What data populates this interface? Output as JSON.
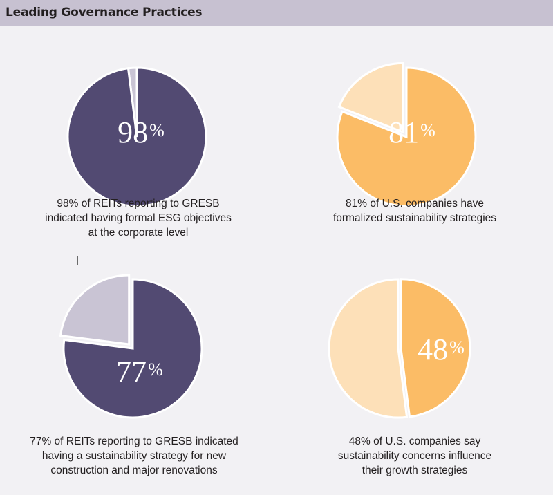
{
  "header": {
    "title": "Leading Governance Practices"
  },
  "colors": {
    "header_bg": "#c7c1d1",
    "purple": "#524a72",
    "purple_light": "#c9c4d4",
    "orange": "#fbbc66",
    "orange_light": "#fde0b8",
    "background": "#f2f1f4"
  },
  "chart_data": [
    {
      "type": "pie",
      "values": [
        98,
        2
      ],
      "label_number": "98",
      "label_unit": "%",
      "caption": [
        "98% of REITs reporting to GRESB",
        "indicated having formal ESG objectives",
        "at the corporate level"
      ]
    },
    {
      "type": "pie",
      "values": [
        81,
        19
      ],
      "label_number": "81",
      "label_unit": "%",
      "caption": [
        "81% of U.S. companies have",
        "formalized sustainability strategies"
      ]
    },
    {
      "type": "pie",
      "values": [
        77,
        23
      ],
      "label_number": "77",
      "label_unit": "%",
      "caption": [
        "77% of REITs reporting to GRESB indicated",
        "having a sustainability strategy for new",
        "construction and major renovations"
      ]
    },
    {
      "type": "pie",
      "values": [
        48,
        52
      ],
      "label_number": "48",
      "label_unit": "%",
      "caption": [
        "48% of U.S. companies say",
        "sustainability concerns influence",
        "their growth strategies"
      ]
    }
  ]
}
